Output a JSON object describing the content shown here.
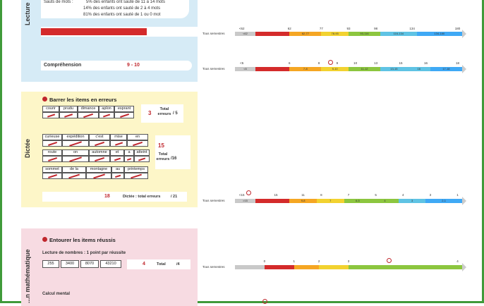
{
  "lecture": {
    "side_label": "Lecture",
    "sauts_label": "Sauts de mots :",
    "sauts_lines": [
      "5% des enfants ont sauté de 11 à 14 mots",
      "14% des enfants ont sauté de 2 à 4 mots",
      "81% des enfants ont sauté de 1 ou 0 mot"
    ],
    "comprehension_label": "Compréhension",
    "comprehension_value": "9 - 10"
  },
  "dictee": {
    "side_label": "Dictée",
    "instruction": "Barrer les items en erreurs",
    "group1_words": [
      "courir",
      "prudu",
      "dimance",
      "aplon",
      "esprant"
    ],
    "group1_errors": "3",
    "group1_total_label": "Total erreurs",
    "group1_total_max": "/ 5",
    "group2_rows": [
      [
        "curieuse",
        "expédition",
        "c'est",
        "mise",
        "en"
      ],
      [
        "route",
        "on",
        "automne",
        "et",
        "a",
        "atteint"
      ],
      [
        "sommet",
        "de la",
        "montagne",
        "au",
        "printemps"
      ]
    ],
    "group2_errors": "15",
    "group2_total_label": "Total erreurs",
    "group2_total_max": "/16",
    "total_errors": "18",
    "total_label": "Dictée : total erreurs",
    "total_max": "/ 21"
  },
  "math": {
    "side_label": "...n mathématique",
    "instruction": "Entourer les items réussis",
    "numbers_label": "Lecture de nombres : 1 point par réussite",
    "numbers": [
      "255",
      "3400",
      "8070",
      "43210"
    ],
    "numbers_score": "4",
    "numbers_total_label": "Total",
    "numbers_total_max": "/4",
    "calcul_label": "Calcul mental"
  },
  "scales": {
    "left_label": "Tous semestres",
    "scale1": {
      "ticks": [
        "<62",
        "62",
        "77",
        "93",
        "98",
        "134",
        "180"
      ],
      "segments": [
        "<62",
        "",
        "62-77",
        "78-93",
        "93-116",
        "116-134",
        "134-180"
      ]
    },
    "scale2": {
      "ticks": [
        "<5",
        "6",
        "8",
        "9",
        "10",
        "13",
        "15",
        "16",
        "18"
      ],
      "segments": [
        "<5",
        "",
        "7-8",
        "9-10",
        "11-12",
        "13-15",
        "16",
        "17-18"
      ]
    },
    "scale3": {
      "ticks": [
        "<15",
        "15",
        "11",
        "8",
        "7",
        "5",
        "4",
        "3",
        "1"
      ],
      "segments": [
        ">15",
        "",
        "9-8",
        "7",
        "6-5",
        "4",
        "3",
        "2-1"
      ]
    },
    "scale4": {
      "ticks": [
        "0",
        "1",
        "2",
        "3",
        "4"
      ]
    }
  },
  "colors": {
    "grey": "#c9c9c9",
    "red": "#d42b2b",
    "orange": "#f5a623",
    "yellow": "#f2d230",
    "green": "#8cc63f",
    "lightblue": "#5fc3e4",
    "blue": "#3fa9f5",
    "frame": "#3f9a3a"
  }
}
